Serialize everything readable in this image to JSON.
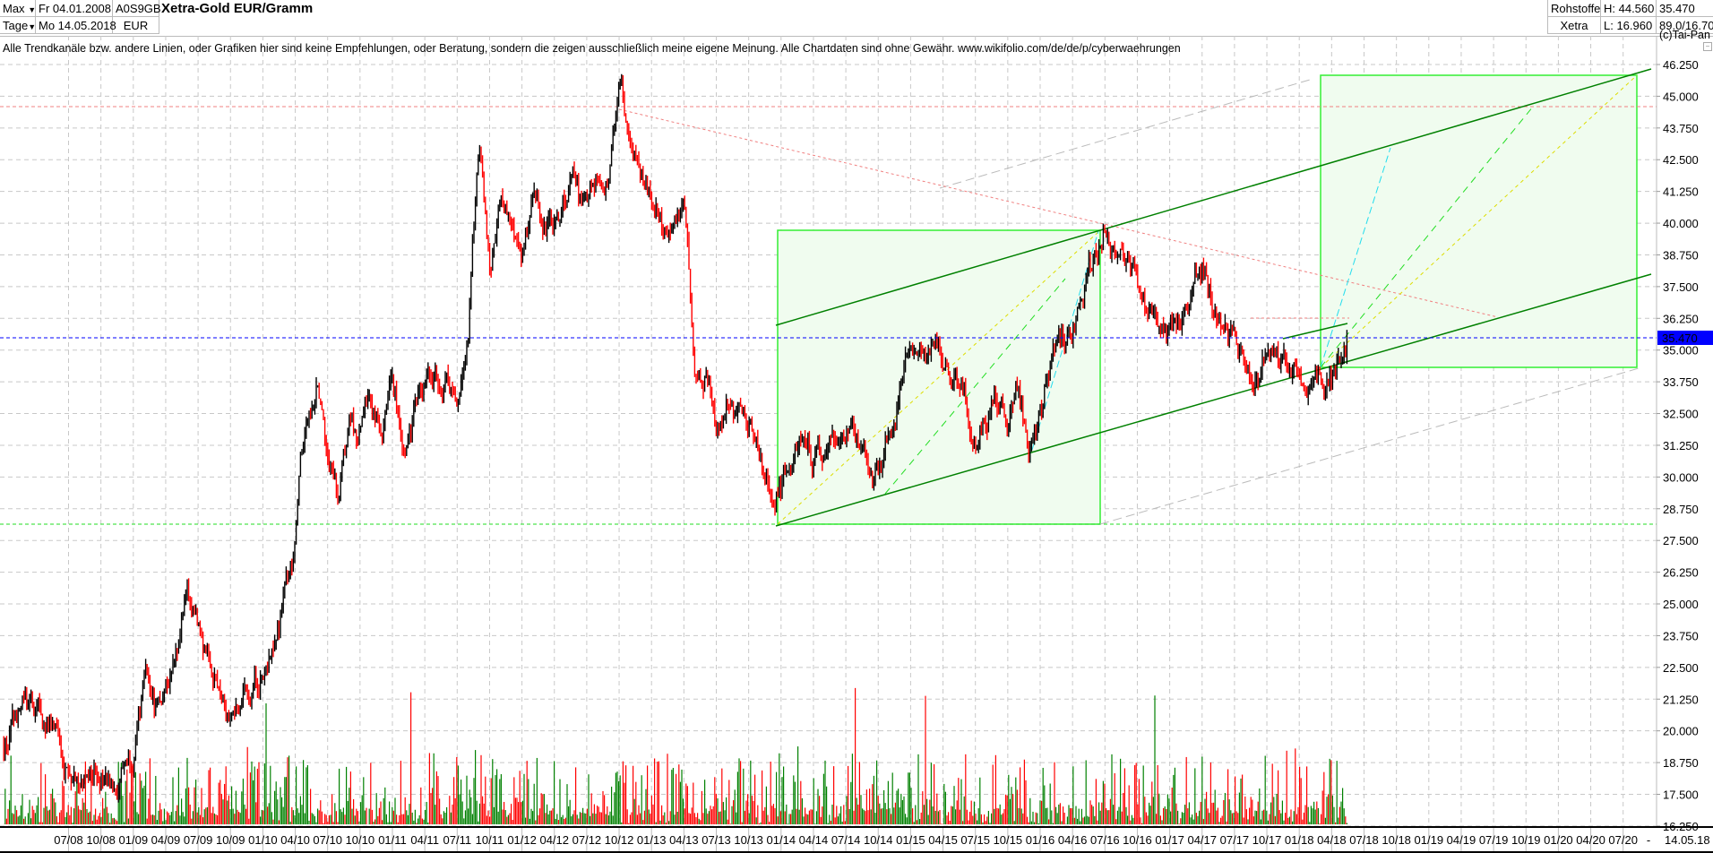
{
  "header": {
    "period_select": "Max",
    "interval_select": "Tage",
    "date_from": "Fr 04.01.2008",
    "date_to": "Mo 14.05.2018",
    "isin": "A0S9GB",
    "currency": "EUR",
    "title": "Xetra-Gold EUR/Gramm",
    "category": "Rohstoffe",
    "exchange": "Xetra",
    "high": "H: 44.560",
    "low": "L: 16.960",
    "last": "35.470",
    "range": "89.0/16.70"
  },
  "disclaimer": "Alle Trendkanäle bzw. andere Linien, oder Grafiken hier sind keine Empfehlungen, oder Beratung, sondern die zeigen ausschließlich meine eigene Meinung. Alle Chartdaten sind ohne Gewähr.  www.wikifolio.com/de/de/p/cyberwaehrungen",
  "copyright": "(c)Tai-Pan",
  "colors": {
    "up": "#000000",
    "down": "#ff0000",
    "volume_up": "#008000",
    "volume_down": "#ff0000",
    "channel": "#008000",
    "box_fill": "#f0fcef",
    "box_stroke": "#33ee33",
    "last_price_tag": "#0000ff"
  },
  "chart_data": {
    "type": "bar",
    "subtype": "ohlc-with-volume",
    "title": "Xetra-Gold EUR/Gramm",
    "grid": true,
    "ylim": [
      16.25,
      46.25
    ],
    "y_ticks": [
      "46.250",
      "45.000",
      "43.750",
      "42.500",
      "41.250",
      "40.000",
      "38.750",
      "37.500",
      "36.250",
      "35.000",
      "33.750",
      "32.500",
      "31.250",
      "30.000",
      "28.750",
      "27.500",
      "26.250",
      "25.000",
      "23.750",
      "22.500",
      "21.250",
      "20.000",
      "18.750",
      "17.500",
      "16.250"
    ],
    "x_ticks": [
      "07/08",
      "10/08",
      "01/09",
      "04/09",
      "07/09",
      "10/09",
      "01/10",
      "04/10",
      "07/10",
      "10/10",
      "01/11",
      "04/11",
      "07/11",
      "10/11",
      "01/12",
      "04/12",
      "07/12",
      "10/12",
      "01/13",
      "04/13",
      "07/13",
      "10/13",
      "01/14",
      "04/14",
      "07/14",
      "10/14",
      "01/15",
      "04/15",
      "07/15",
      "10/15",
      "01/16",
      "04/16",
      "07/16",
      "10/16",
      "01/17",
      "04/17",
      "07/17",
      "10/17",
      "01/18",
      "04/18",
      "07/18",
      "10/18",
      "01/19",
      "04/19",
      "07/19",
      "10/19",
      "01/20",
      "04/20",
      "07/20"
    ],
    "x_end_separator": "-",
    "x_end_date": "14.05.18",
    "last_price": 35.47,
    "last_price_label": "35.470",
    "reference_lines": {
      "high": 44.56,
      "low": 28.15
    },
    "monthly_close_from": "01/08",
    "monthly_close": [
      19.5,
      20.2,
      20.8,
      20.3,
      20.0,
      19.0,
      18.3,
      18.6,
      18.0,
      18.8,
      17.2,
      19.0,
      19.5,
      21.5,
      20.5,
      22.0,
      23.5,
      25.5,
      23.5,
      22.5,
      22.2,
      21.5,
      21.6,
      21.8,
      22.5,
      23.0,
      24.8,
      26.5,
      32.0,
      33.5,
      31.0,
      29.0,
      31.5,
      31.2,
      32.0,
      31.5,
      33.8,
      31.5,
      32.5,
      33.0,
      33.5,
      34.5,
      33.5,
      36.5,
      43.5,
      39.0,
      41.0,
      40.0,
      38.0,
      41.0,
      40.5,
      40.0,
      41.0,
      41.5,
      40.0,
      42.0,
      42.5,
      44.5,
      43.5,
      42.5,
      41.0,
      39.5,
      38.5,
      39.5,
      34.5,
      34.5,
      32.0,
      33.5,
      32.5,
      31.5,
      30.5,
      29.0,
      29.5,
      30.5,
      31.0,
      30.5,
      30.5,
      31.5,
      31.0,
      31.5,
      30.5,
      29.8,
      31.2,
      33.5,
      36.5,
      35.0,
      35.5,
      35.0,
      34.5,
      33.5,
      32.3,
      32.5,
      33.0,
      32.5,
      33.0,
      31.5,
      32.0,
      34.5,
      35.5,
      35.5,
      36.5,
      38.0,
      39.5,
      38.5,
      38.0,
      37.5,
      36.5,
      35.5,
      35.0,
      36.0,
      37.0,
      38.5,
      37.0,
      36.0,
      35.5,
      34.5,
      34.0,
      35.0,
      34.5,
      34.5,
      34.5,
      34.2,
      34.0,
      34.3,
      35.5
    ]
  }
}
